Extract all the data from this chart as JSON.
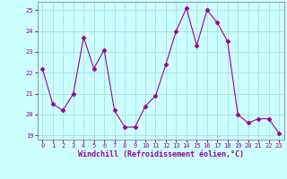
{
  "x": [
    0,
    1,
    2,
    3,
    4,
    5,
    6,
    7,
    8,
    9,
    10,
    11,
    12,
    13,
    14,
    15,
    16,
    17,
    18,
    19,
    20,
    21,
    22,
    23
  ],
  "y": [
    22.2,
    20.5,
    20.2,
    21.0,
    23.7,
    22.2,
    23.1,
    20.2,
    19.4,
    19.4,
    20.4,
    20.9,
    22.4,
    24.0,
    25.1,
    23.3,
    25.0,
    24.4,
    23.5,
    20.0,
    19.6,
    19.8,
    19.8,
    19.1
  ],
  "line_color": "#990099",
  "marker": "D",
  "marker_size": 2.5,
  "bg_color": "#ccffff",
  "grid_color": "#aadddd",
  "xlabel": "Windchill (Refroidissement éolien,°C)",
  "ylim": [
    18.8,
    25.4
  ],
  "xlim": [
    -0.5,
    23.5
  ],
  "yticks": [
    19,
    20,
    21,
    22,
    23,
    24,
    25
  ],
  "xticks": [
    0,
    1,
    2,
    3,
    4,
    5,
    6,
    7,
    8,
    9,
    10,
    11,
    12,
    13,
    14,
    15,
    16,
    17,
    18,
    19,
    20,
    21,
    22,
    23
  ],
  "tick_label_color": "#990099",
  "tick_fontsize": 5.0,
  "xlabel_fontsize": 6.0,
  "spine_color": "#888888"
}
